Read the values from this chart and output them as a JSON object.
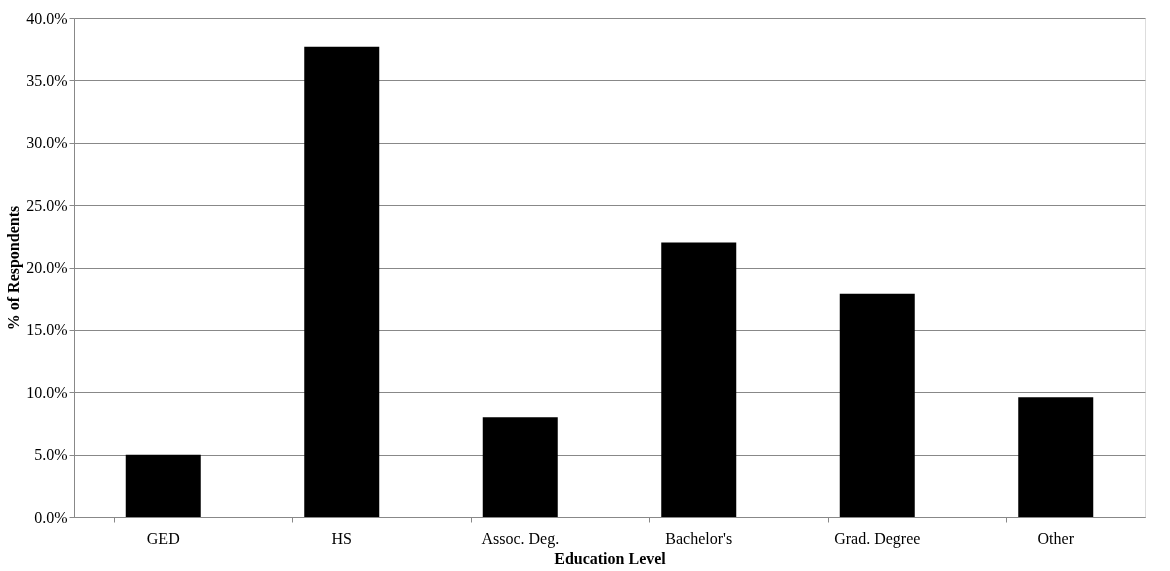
{
  "chart_data": {
    "type": "bar",
    "xlabel": "Education Level",
    "ylabel": "% of Respondents",
    "categories": [
      "GED",
      "HS",
      "Assoc. Deg.",
      "Bachelor's",
      "Grad. Degree",
      "Other"
    ],
    "values": [
      5.0,
      37.7,
      8.0,
      22.0,
      17.9,
      9.6
    ],
    "color": "#000000",
    "ylim": [
      0,
      40
    ],
    "yticks": [
      {
        "value": 0,
        "label": "0.0%"
      },
      {
        "value": 5,
        "label": "5.0%"
      },
      {
        "value": 10,
        "label": "10.0%"
      },
      {
        "value": 15,
        "label": "15.0%"
      },
      {
        "value": 20,
        "label": "20.0%"
      },
      {
        "value": 25,
        "label": "25.0%"
      },
      {
        "value": 30,
        "label": "30.0%"
      },
      {
        "value": 35,
        "label": "35.0%"
      },
      {
        "value": 40,
        "label": "40.0%"
      }
    ],
    "grid": "y"
  }
}
